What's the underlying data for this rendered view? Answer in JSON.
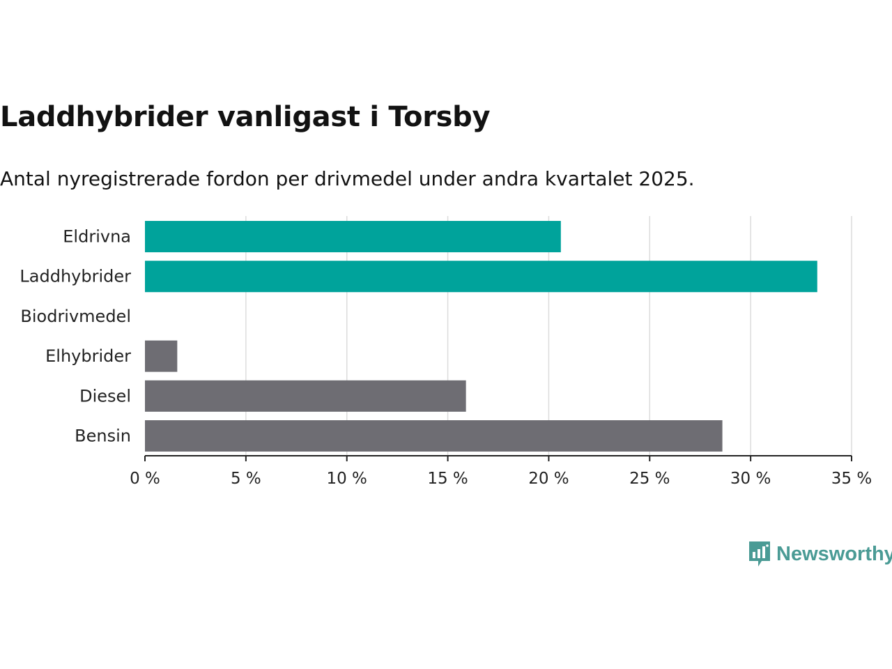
{
  "header": {
    "title": "Laddhybrider vanligast i Torsby",
    "subtitle": "Antal nyregistrerade fordon per drivmedel under andra kvartalet 2025."
  },
  "brand": {
    "name": "Newsworthy",
    "logo_icon": "bar-chart-speech-bubble-icon",
    "color": "#4a9b95"
  },
  "colors": {
    "highlight": "#00a39b",
    "default": "#6e6d73",
    "grid": "#dcdcdc",
    "axis": "#222222",
    "text": "#222222"
  },
  "chart_data": {
    "type": "bar",
    "orientation": "horizontal",
    "categories": [
      "Eldrivna",
      "Laddhybrider",
      "Biodrivmedel",
      "Elhybrider",
      "Diesel",
      "Bensin"
    ],
    "values": [
      20.6,
      33.3,
      0,
      1.6,
      15.9,
      28.6
    ],
    "bar_colors": [
      "#00a39b",
      "#00a39b",
      "#6e6d73",
      "#6e6d73",
      "#6e6d73",
      "#6e6d73"
    ],
    "xlim": [
      0,
      35
    ],
    "xticks": [
      0,
      5,
      10,
      15,
      20,
      25,
      30,
      35
    ],
    "xtick_labels": [
      "0 %",
      "5 %",
      "10 %",
      "15 %",
      "20 %",
      "25 %",
      "30 %",
      "35 %"
    ],
    "grid": true,
    "legend": false
  }
}
